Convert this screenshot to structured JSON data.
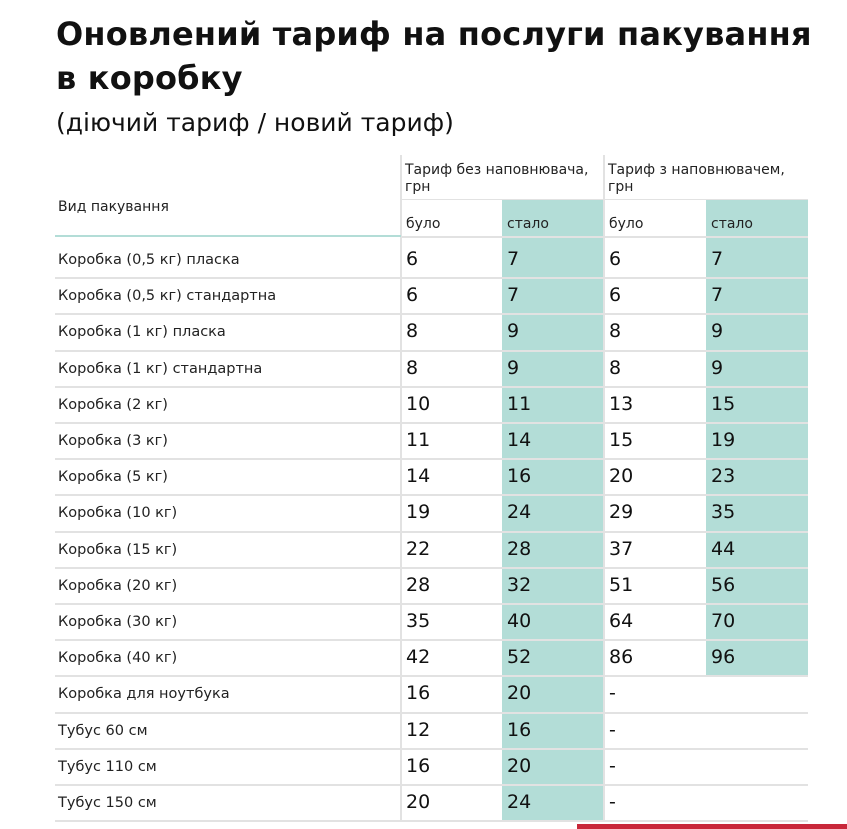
{
  "title": "Оновлений тариф на послуги пакування в коробку",
  "subtitle": "(діючий тариф / новий тариф)",
  "table": {
    "row_header": "Вид пакування",
    "group_headers": [
      "Тариф без наповнювача, грн",
      "Тариф з наповнювачем, грн"
    ],
    "sub_headers": [
      "було",
      "стало",
      "було",
      "стало"
    ],
    "rows": [
      {
        "label": "Коробка (0,5 кг) пласка",
        "values": [
          "6",
          "7",
          "6",
          "7"
        ]
      },
      {
        "label": "Коробка (0,5 кг) стандартна",
        "values": [
          "6",
          "7",
          "6",
          "7"
        ]
      },
      {
        "label": "Коробка (1 кг) пласка",
        "values": [
          "8",
          "9",
          "8",
          "9"
        ]
      },
      {
        "label": "Коробка (1 кг) стандартна",
        "values": [
          "8",
          "9",
          "8",
          "9"
        ]
      },
      {
        "label": "Коробка (2 кг)",
        "values": [
          "10",
          "11",
          "13",
          "15"
        ]
      },
      {
        "label": "Коробка (3 кг)",
        "values": [
          "11",
          "14",
          "15",
          "19"
        ]
      },
      {
        "label": "Коробка (5 кг)",
        "values": [
          "14",
          "16",
          "20",
          "23"
        ]
      },
      {
        "label": "Коробка (10 кг)",
        "values": [
          "19",
          "24",
          "29",
          "35"
        ]
      },
      {
        "label": "Коробка (15 кг)",
        "values": [
          "22",
          "28",
          "37",
          "44"
        ]
      },
      {
        "label": "Коробка (20 кг)",
        "values": [
          "28",
          "32",
          "51",
          "56"
        ]
      },
      {
        "label": "Коробка (30 кг)",
        "values": [
          "35",
          "40",
          "64",
          "70"
        ]
      },
      {
        "label": "Коробка (40 кг)",
        "values": [
          "42",
          "52",
          "86",
          "96"
        ]
      },
      {
        "label": "Коробка для ноутбука",
        "values": [
          "16",
          "20",
          "-",
          ""
        ]
      },
      {
        "label": "Тубус 60 см",
        "values": [
          "12",
          "16",
          "-",
          ""
        ]
      },
      {
        "label": "Тубус 110 см",
        "values": [
          "16",
          "20",
          "-",
          ""
        ]
      },
      {
        "label": "Тубус 150 см",
        "values": [
          "20",
          "24",
          "-",
          ""
        ]
      }
    ]
  },
  "colors": {
    "teal": "#b3ddd7",
    "accent_red": "#c8273a"
  }
}
